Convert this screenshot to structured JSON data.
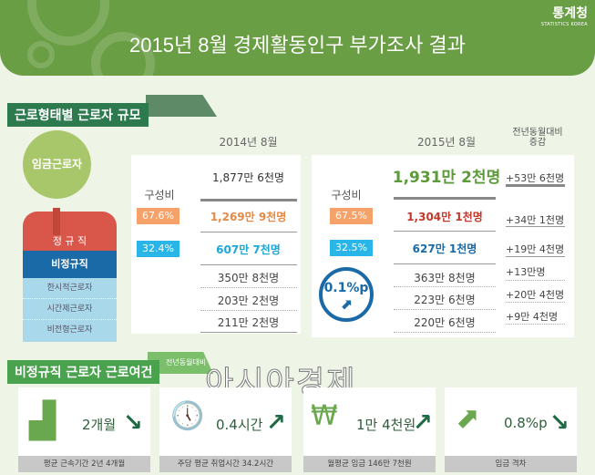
{
  "header": {
    "title": "2015년 8월 경제활동인구 부가조사 결과",
    "logo_ko": "통계청",
    "logo_en": "STATISTICS KOREA"
  },
  "section1": {
    "title": "근로형태별 근로자 규모",
    "person": {
      "head": "임금근로자",
      "regular": "정 규 직",
      "nonregular": "비정규직",
      "sub": [
        "한시적근로자",
        "시간제근로자",
        "비전형근로자"
      ]
    },
    "y2014": {
      "header": "2014년 8월",
      "ratio_label": "구성비",
      "total": "1,877만 6천명",
      "regular": "1,269만 9천명",
      "nonregular": "607만 7천명",
      "sub": [
        "350만 8천명",
        "203만 2천명",
        "211만 2천명"
      ],
      "regular_pct": "67.6%",
      "nonregular_pct": "32.4%"
    },
    "y2015": {
      "header": "2015년 8월",
      "ratio_label": "구성비",
      "total": "1,931만 2천명",
      "regular": "1,304만 1천명",
      "nonregular": "627만 1천명",
      "sub": [
        "363만 8천명",
        "223만 6천명",
        "220만 6천명"
      ],
      "regular_pct": "67.5%",
      "nonregular_pct": "32.5%",
      "change_pct": "0.1%p"
    },
    "diff": {
      "header1": "전년동월대비",
      "header2": "증감",
      "total": "+53만 6천명",
      "regular": "+34만 1천명",
      "nonregular": "+19만 4천명",
      "sub": [
        "+13만명",
        "+20만 4천명",
        "+9만 4천명"
      ]
    }
  },
  "section2": {
    "title": "비정규직 근로자 근로여건",
    "tab": "전년동월대비",
    "watermark": "아시아경제",
    "cards": [
      {
        "icon": "chair-icon",
        "value": "2개월",
        "trend": "down",
        "caption": "평균 근속기간 2년 4개월"
      },
      {
        "icon": "clock-person-icon",
        "value": "0.4시간",
        "trend": "up",
        "caption": "주당 평균 취업시간 34.2시간"
      },
      {
        "icon": "won-coin-icon",
        "value": "1만 4천원",
        "trend": "up",
        "caption": "월평균 임금 146만 7천원"
      },
      {
        "icon": "coin-growth-icon",
        "value": "0.8%p",
        "trend": "down",
        "caption": "임금 격차"
      }
    ]
  },
  "colors": {
    "header": "#6a9e45",
    "regular": "#d9574a",
    "nonregular": "#1a6aa8",
    "orange": "#f4a26a",
    "cyan": "#29b5e8",
    "green_total": "#5c9a3a"
  }
}
